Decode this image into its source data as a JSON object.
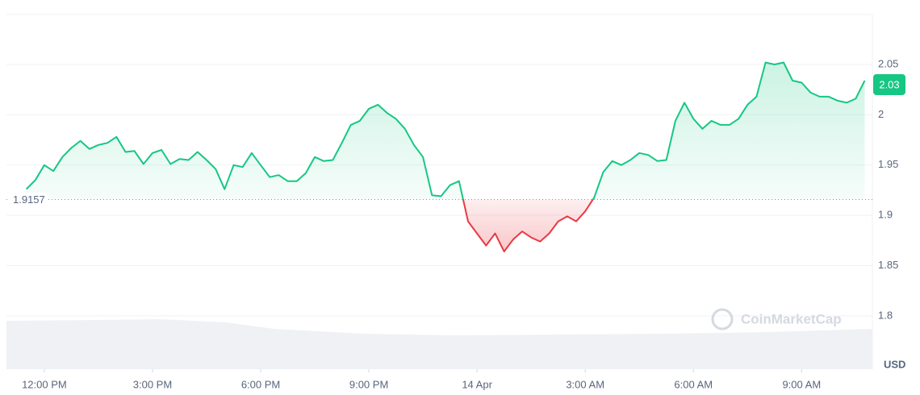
{
  "chart_data": {
    "type": "line",
    "values": [
      1.926,
      1.935,
      1.95,
      1.944,
      1.958,
      1.967,
      1.974,
      1.966,
      1.97,
      1.972,
      1.978,
      1.963,
      1.964,
      1.951,
      1.962,
      1.965,
      1.951,
      1.956,
      1.955,
      1.963,
      1.955,
      1.946,
      1.926,
      1.95,
      1.948,
      1.962,
      1.95,
      1.938,
      1.94,
      1.934,
      1.934,
      1.942,
      1.958,
      1.954,
      1.955,
      1.972,
      1.99,
      1.994,
      2.006,
      2.01,
      2.002,
      1.996,
      1.986,
      1.97,
      1.958,
      1.92,
      1.919,
      1.93,
      1.934,
      1.894,
      1.882,
      1.87,
      1.882,
      1.864,
      1.876,
      1.884,
      1.878,
      1.874,
      1.882,
      1.894,
      1.899,
      1.894,
      1.904,
      1.918,
      1.943,
      1.954,
      1.95,
      1.955,
      1.962,
      1.96,
      1.954,
      1.955,
      1.994,
      2.012,
      1.996,
      1.986,
      1.994,
      1.99,
      1.99,
      1.996,
      2.01,
      2.018,
      2.052,
      2.05,
      2.052,
      2.034,
      2.032,
      2.022,
      2.018,
      2.018,
      2.014,
      2.012,
      2.016,
      2.034
    ],
    "baseline": 1.9157,
    "last_value": 2.03,
    "up_color": "#16c784",
    "down_color": "#ea3943",
    "xlim": [
      -2.2,
      93.85
    ],
    "xticks": [
      {
        "value": 2,
        "label": "12:00 PM"
      },
      {
        "value": 14,
        "label": "3:00 PM"
      },
      {
        "value": 26,
        "label": "6:00 PM"
      },
      {
        "value": 38,
        "label": "9:00 PM"
      },
      {
        "value": 50,
        "label": "14 Apr"
      },
      {
        "value": 62,
        "label": "3:00 AM"
      },
      {
        "value": 74,
        "label": "6:00 AM"
      },
      {
        "value": 86,
        "label": "9:00 AM"
      }
    ],
    "ylim": [
      1.747,
      2.0997
    ],
    "yticks": [
      1.8,
      1.85,
      1.9,
      1.95,
      2.0,
      2.05
    ],
    "grid": true,
    "currency": "USD",
    "watermark": "CoinMarketCap"
  }
}
